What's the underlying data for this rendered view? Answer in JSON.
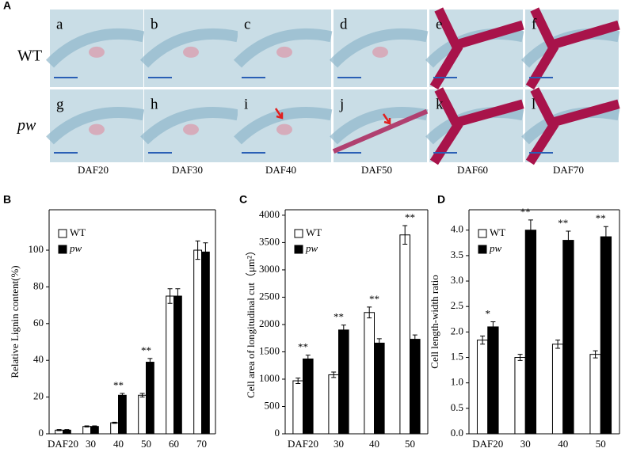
{
  "panel_a": {
    "label": "A",
    "rows": [
      "WT",
      "pw"
    ],
    "images": [
      "a",
      "b",
      "c",
      "d",
      "e",
      "f",
      "g",
      "h",
      "i",
      "j",
      "k",
      "l"
    ],
    "stages": [
      "DAF20",
      "DAF30",
      "DAF40",
      "DAF50",
      "DAF60",
      "DAF70"
    ]
  },
  "chart_data": [
    {
      "type": "bar",
      "label": "B",
      "ylabel": "Relative Lignin content(%)",
      "categories": [
        "DAF20",
        "30",
        "40",
        "50",
        "60",
        "70"
      ],
      "series": [
        {
          "name": "WT",
          "color": "#ffffff",
          "values": [
            2,
            4,
            6,
            21,
            75,
            100
          ],
          "errors": [
            0.3,
            0.3,
            0.3,
            1,
            4,
            5
          ]
        },
        {
          "name": "pw",
          "color": "#000000",
          "values": [
            2,
            4,
            21,
            39,
            75,
            99
          ],
          "errors": [
            0.3,
            0.3,
            1,
            2,
            4,
            5
          ]
        }
      ],
      "annotations": [
        null,
        null,
        "**",
        "**",
        null,
        null
      ],
      "ylim": [
        0,
        122
      ],
      "yticks": [
        0,
        20,
        40,
        60,
        80,
        100
      ]
    },
    {
      "type": "bar",
      "label": "C",
      "ylabel": "Cell area of longitudinal cut（μm²）",
      "categories": [
        "DAF20",
        "30",
        "40",
        "50"
      ],
      "series": [
        {
          "name": "WT",
          "color": "#ffffff",
          "values": [
            970,
            1080,
            2220,
            3640
          ],
          "errors": [
            50,
            50,
            100,
            170
          ]
        },
        {
          "name": "pw",
          "color": "#000000",
          "values": [
            1370,
            1900,
            1660,
            1730
          ],
          "errors": [
            70,
            90,
            80,
            80
          ]
        }
      ],
      "annotations": [
        "**",
        "**",
        "**",
        "**"
      ],
      "ylim": [
        0,
        4100
      ],
      "yticks": [
        0,
        500,
        1000,
        1500,
        2000,
        2500,
        3000,
        3500,
        4000
      ]
    },
    {
      "type": "bar",
      "label": "D",
      "ylabel": "Cell length-width ratio",
      "categories": [
        "DAF20",
        "30",
        "40",
        "50"
      ],
      "series": [
        {
          "name": "WT",
          "color": "#ffffff",
          "values": [
            1.84,
            1.5,
            1.76,
            1.56
          ],
          "errors": [
            0.08,
            0.06,
            0.08,
            0.07
          ]
        },
        {
          "name": "pw",
          "color": "#000000",
          "values": [
            2.1,
            4.0,
            3.8,
            3.87
          ],
          "errors": [
            0.1,
            0.2,
            0.18,
            0.2
          ]
        }
      ],
      "annotations": [
        "*",
        "**",
        "**",
        "**"
      ],
      "ylim": [
        0,
        4.4
      ],
      "yticks": [
        {
          "value": 0,
          "label": "0.0"
        },
        0.5,
        {
          "value": 1,
          "label": "1.0"
        },
        1.5,
        {
          "value": 2,
          "label": "2.0"
        },
        2.5,
        {
          "value": 3,
          "label": "3.0"
        },
        3.5,
        {
          "value": 4,
          "label": "4.0"
        }
      ]
    }
  ]
}
